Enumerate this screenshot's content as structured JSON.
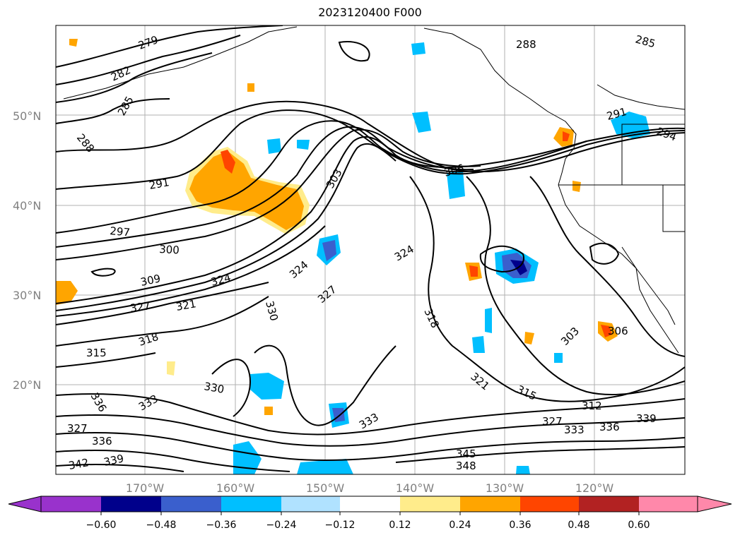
{
  "title": "2023120400 F000",
  "lat_labels": [
    "50°N",
    "40°N",
    "30°N",
    "20°N"
  ],
  "lon_labels": [
    "170°W",
    "160°W",
    "150°W",
    "140°W",
    "130°W",
    "120°W"
  ],
  "colorbar": {
    "ticks": [
      "−0.60",
      "−0.48",
      "−0.36",
      "−0.24",
      "−0.12",
      "0.12",
      "0.24",
      "0.36",
      "0.48",
      "0.60"
    ],
    "colors": [
      "#9932cc",
      "#00008b",
      "#3a5fcd",
      "#00bfff",
      "#b0e2ff",
      "#ffffff",
      "#ffec8b",
      "#ffa500",
      "#ff4500",
      "#b22222",
      "#ff88aa"
    ]
  },
  "contour_labels": [
    "279",
    "282",
    "285",
    "288",
    "291",
    "297",
    "300",
    "309",
    "324",
    "327",
    "321",
    "318",
    "315",
    "330",
    "303",
    "327",
    "324",
    "306",
    "324",
    "318",
    "303",
    "306",
    "321",
    "315",
    "312",
    "327",
    "333",
    "336",
    "339",
    "345",
    "348",
    "291",
    "285",
    "288",
    "294",
    "336",
    "333",
    "327",
    "336",
    "339",
    "342",
    "330",
    "333"
  ]
}
